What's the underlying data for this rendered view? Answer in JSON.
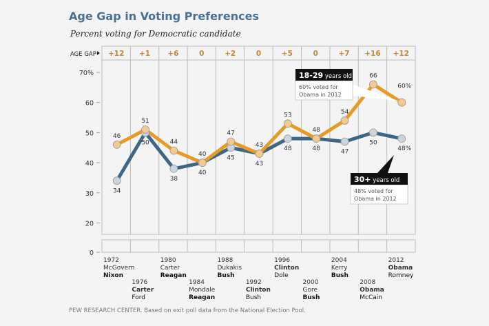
{
  "title": "Age Gap in Voting Preferences",
  "subtitle": "Percent voting for Democratic candidate",
  "source": "PEW RESEARCH  CENTER.  Based on exit poll data from the National Election Pool.",
  "chart_data": {
    "type": "line",
    "ylim": [
      0,
      70
    ],
    "yticks": [
      "70%",
      "60",
      "50",
      "40",
      "30",
      "20",
      "0"
    ],
    "age_gap_label": "AGE GAP",
    "age_gap": [
      "+12",
      "+1",
      "+6",
      "0",
      "+2",
      "0",
      "+5",
      "0",
      "+7",
      "+16",
      "+12"
    ],
    "elections": [
      {
        "year": "1972",
        "dem": "McGovern",
        "rep": "Nixon",
        "winner": "rep"
      },
      {
        "year": "1976",
        "dem": "Carter",
        "rep": "Ford",
        "winner": "dem"
      },
      {
        "year": "1980",
        "dem": "Carter",
        "rep": "Reagan",
        "winner": "rep"
      },
      {
        "year": "1984",
        "dem": "Mondale",
        "rep": "Reagan",
        "winner": "rep"
      },
      {
        "year": "1988",
        "dem": "Dukakis",
        "rep": "Bush",
        "winner": "rep"
      },
      {
        "year": "1992",
        "dem": "Clinton",
        "rep": "Bush",
        "winner": "dem"
      },
      {
        "year": "1996",
        "dem": "Clinton",
        "rep": "Dole",
        "winner": "dem"
      },
      {
        "year": "2000",
        "dem": "Gore",
        "rep": "Bush",
        "winner": "rep"
      },
      {
        "year": "2004",
        "dem": "Kerry",
        "rep": "Bush",
        "winner": "rep"
      },
      {
        "year": "2008",
        "dem": "Obama",
        "rep": "McCain",
        "winner": "dem"
      },
      {
        "year": "2012",
        "dem": "Obama",
        "rep": "Romney",
        "winner": "dem"
      }
    ],
    "series": [
      {
        "name": "18-29 years old",
        "values": [
          46,
          51,
          44,
          40,
          47,
          43,
          53,
          48,
          54,
          66,
          60
        ],
        "color": "#e69a28",
        "point_fill": "#f2c98e",
        "last_label": "60%"
      },
      {
        "name": "30+ years old",
        "values": [
          34,
          50,
          38,
          40,
          45,
          43,
          48,
          48,
          47,
          50,
          48
        ],
        "color": "#3e6786",
        "point_fill": "#c9d5df",
        "last_label": "48%"
      }
    ],
    "callouts": [
      {
        "head_bold": "18-29",
        "head_rest": "years old",
        "line1": "60% voted for",
        "line2": "Obama in 2012"
      },
      {
        "head_bold": "30+",
        "head_rest": "years old",
        "line1": "48% voted for",
        "line2": "Obama in 2012"
      }
    ],
    "grid": true
  }
}
